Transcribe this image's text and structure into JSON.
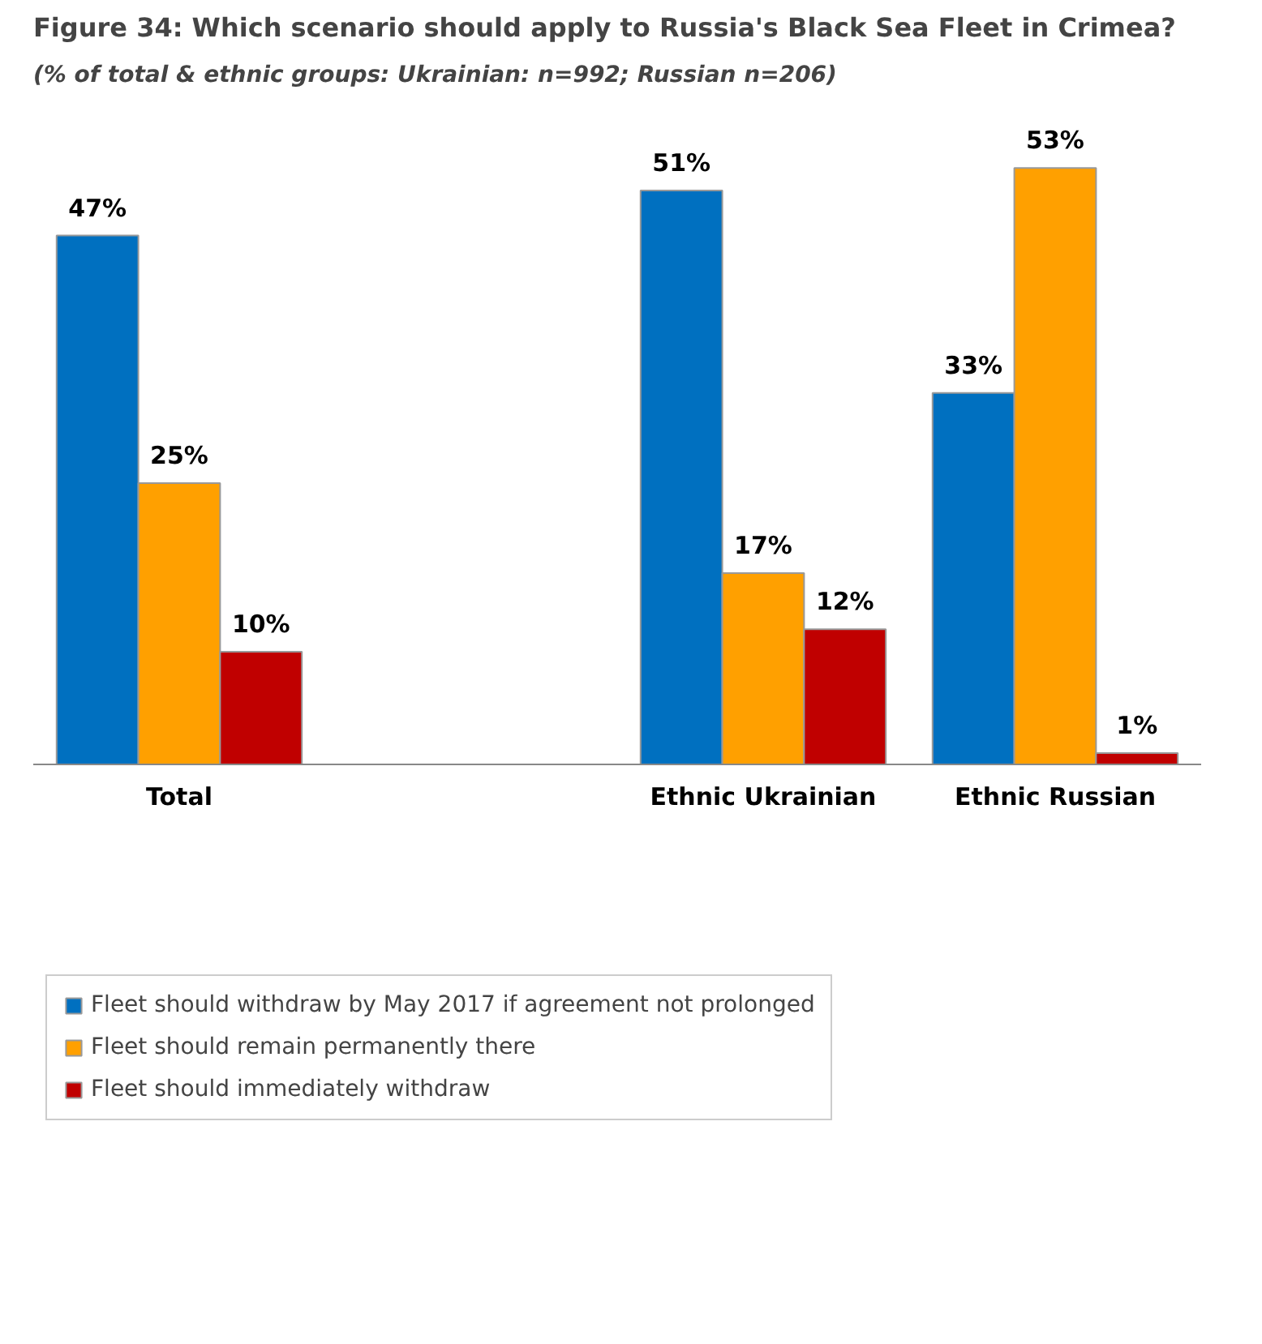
{
  "chart_data": {
    "type": "bar",
    "title": "Figure 34: Which scenario should apply to Russia's Black Sea Fleet in Crimea?",
    "subtitle": "(% of total & ethnic groups: Ukrainian: n=992; Russian n=206)",
    "categories": [
      "Total",
      null,
      "Ethnic Ukrainian",
      "Ethnic Russian"
    ],
    "series": [
      {
        "name": "Fleet should withdraw by May 2017 if agreement not prolonged",
        "color": "#0070c0",
        "values": [
          47,
          null,
          51,
          33
        ],
        "value_labels": [
          "47%",
          null,
          "51%",
          "33%"
        ]
      },
      {
        "name": "Fleet should remain permanently there",
        "color": "#ffa000",
        "values": [
          25,
          null,
          17,
          53
        ],
        "value_labels": [
          "25%",
          null,
          "17%",
          "53%"
        ]
      },
      {
        "name": "Fleet should immediately withdraw",
        "color": "#c00000",
        "values": [
          10,
          null,
          12,
          1
        ],
        "value_labels": [
          "10%",
          null,
          "12%",
          "1%"
        ]
      }
    ],
    "legend": "bottom",
    "grid": false
  }
}
